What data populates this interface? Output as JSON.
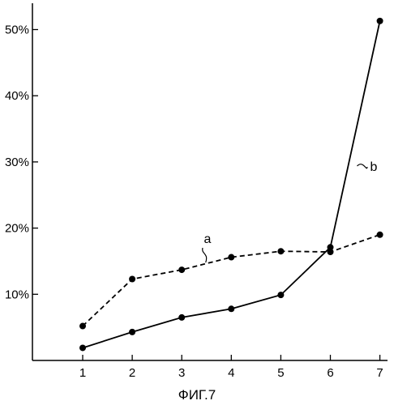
{
  "chart_data": {
    "type": "line",
    "title": "",
    "xlabel": "",
    "ylabel": "",
    "categories": [
      "1",
      "2",
      "3",
      "4",
      "5",
      "6",
      "7"
    ],
    "x_ticks": [
      "1",
      "2",
      "3",
      "4",
      "5",
      "6",
      "7"
    ],
    "y_ticks": [
      "10%",
      "20%",
      "30%",
      "40%",
      "50%"
    ],
    "ylim": [
      0,
      55
    ],
    "grid": false,
    "legend": "none",
    "series": [
      {
        "name": "a",
        "style": "dashed",
        "values": [
          5.2,
          12.3,
          13.7,
          15.6,
          16.5,
          16.4,
          19.0
        ]
      },
      {
        "name": "b",
        "style": "solid",
        "values": [
          1.9,
          4.3,
          6.5,
          7.8,
          9.9,
          17.1,
          51.3
        ]
      }
    ],
    "caption": "ФИГ.7",
    "line_color": "#000000"
  }
}
